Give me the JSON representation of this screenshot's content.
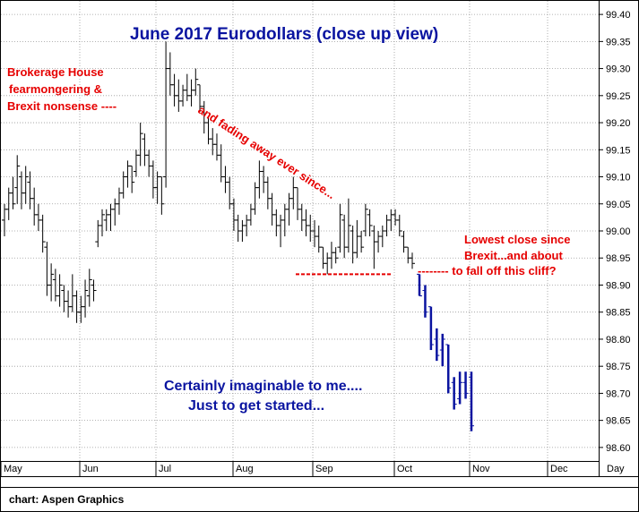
{
  "chart_data": {
    "type": "ohlc",
    "title": "June 2017 Eurodollars (close up view)",
    "x_axis_label": "Day",
    "x_months": [
      "May",
      "Jun",
      "Jul",
      "Aug",
      "Sep",
      "Oct",
      "Nov",
      "Dec"
    ],
    "y_ticks": [
      "99.40",
      "99.35",
      "99.30",
      "99.25",
      "99.20",
      "99.15",
      "99.10",
      "99.05",
      "99.00",
      "98.95",
      "98.90",
      "98.85",
      "98.80",
      "98.75",
      "98.70",
      "98.65",
      "98.60"
    ],
    "ylim": [
      98.575,
      99.425
    ],
    "grid": true,
    "series_color": "#000000",
    "projection_color": "#0a14a0",
    "annotation_color": "#e60000",
    "bars": [
      {
        "h": 99.05,
        "l": 98.99,
        "o": 99.02,
        "c": 99.04
      },
      {
        "h": 99.08,
        "l": 99.02,
        "o": 99.04,
        "c": 99.07
      },
      {
        "h": 99.1,
        "l": 99.04,
        "o": 99.07,
        "c": 99.05
      },
      {
        "h": 99.14,
        "l": 99.05,
        "o": 99.08,
        "c": 99.12
      },
      {
        "h": 99.11,
        "l": 99.04,
        "o": 99.1,
        "c": 99.07
      },
      {
        "h": 99.12,
        "l": 99.05,
        "o": 99.07,
        "c": 99.1
      },
      {
        "h": 99.11,
        "l": 99.04,
        "o": 99.09,
        "c": 99.06
      },
      {
        "h": 99.08,
        "l": 99.01,
        "o": 99.06,
        "c": 99.03
      },
      {
        "h": 99.05,
        "l": 99.0,
        "o": 99.03,
        "c": 99.02
      },
      {
        "h": 99.03,
        "l": 98.96,
        "o": 99.02,
        "c": 98.98
      },
      {
        "h": 98.98,
        "l": 98.88,
        "o": 98.97,
        "c": 98.9
      },
      {
        "h": 98.94,
        "l": 98.87,
        "o": 98.9,
        "c": 98.92
      },
      {
        "h": 98.93,
        "l": 98.87,
        "o": 98.91,
        "c": 98.88
      },
      {
        "h": 98.92,
        "l": 98.86,
        "o": 98.88,
        "c": 98.9
      },
      {
        "h": 98.9,
        "l": 98.85,
        "o": 98.89,
        "c": 98.87
      },
      {
        "h": 98.89,
        "l": 98.84,
        "o": 98.87,
        "c": 98.86
      },
      {
        "h": 98.92,
        "l": 98.85,
        "o": 98.86,
        "c": 98.88
      },
      {
        "h": 98.89,
        "l": 98.83,
        "o": 98.88,
        "c": 98.85
      },
      {
        "h": 98.88,
        "l": 98.83,
        "o": 98.85,
        "c": 98.86
      },
      {
        "h": 98.91,
        "l": 98.84,
        "o": 98.86,
        "c": 98.89
      },
      {
        "h": 98.93,
        "l": 98.86,
        "o": 98.88,
        "c": 98.91
      },
      {
        "h": 98.91,
        "l": 98.87,
        "o": 98.9,
        "c": 98.89
      },
      {
        "h": 99.02,
        "l": 98.97,
        "o": 98.98,
        "c": 99.01
      },
      {
        "h": 99.04,
        "l": 98.99,
        "o": 99.01,
        "c": 99.03
      },
      {
        "h": 99.04,
        "l": 99.0,
        "o": 99.02,
        "c": 99.03
      },
      {
        "h": 99.05,
        "l": 99.0,
        "o": 99.03,
        "c": 99.04
      },
      {
        "h": 99.06,
        "l": 99.01,
        "o": 99.04,
        "c": 99.05
      },
      {
        "h": 99.08,
        "l": 99.03,
        "o": 99.05,
        "c": 99.07
      },
      {
        "h": 99.11,
        "l": 99.06,
        "o": 99.07,
        "c": 99.1
      },
      {
        "h": 99.13,
        "l": 99.08,
        "o": 99.1,
        "c": 99.12
      },
      {
        "h": 99.12,
        "l": 99.07,
        "o": 99.12,
        "c": 99.09
      },
      {
        "h": 99.15,
        "l": 99.1,
        "o": 99.11,
        "c": 99.14
      },
      {
        "h": 99.2,
        "l": 99.12,
        "o": 99.14,
        "c": 99.18
      },
      {
        "h": 99.18,
        "l": 99.12,
        "o": 99.17,
        "c": 99.14
      },
      {
        "h": 99.15,
        "l": 99.1,
        "o": 99.14,
        "c": 99.12
      },
      {
        "h": 99.13,
        "l": 99.06,
        "o": 99.12,
        "c": 99.08
      },
      {
        "h": 99.11,
        "l": 99.05,
        "o": 99.08,
        "c": 99.1
      },
      {
        "h": 99.1,
        "l": 99.03,
        "o": 99.1,
        "c": 99.05
      },
      {
        "h": 99.35,
        "l": 99.08,
        "o": 99.1,
        "c": 99.3
      },
      {
        "h": 99.33,
        "l": 99.25,
        "o": 99.3,
        "c": 99.27
      },
      {
        "h": 99.29,
        "l": 99.23,
        "o": 99.27,
        "c": 99.25
      },
      {
        "h": 99.28,
        "l": 99.22,
        "o": 99.25,
        "c": 99.24
      },
      {
        "h": 99.27,
        "l": 99.23,
        "o": 99.24,
        "c": 99.26
      },
      {
        "h": 99.29,
        "l": 99.24,
        "o": 99.26,
        "c": 99.25
      },
      {
        "h": 99.28,
        "l": 99.23,
        "o": 99.25,
        "c": 99.26
      },
      {
        "h": 99.3,
        "l": 99.25,
        "o": 99.26,
        "c": 99.28
      },
      {
        "h": 99.27,
        "l": 99.22,
        "o": 99.27,
        "c": 99.23
      },
      {
        "h": 99.24,
        "l": 99.18,
        "o": 99.23,
        "c": 99.2
      },
      {
        "h": 99.21,
        "l": 99.16,
        "o": 99.2,
        "c": 99.17
      },
      {
        "h": 99.19,
        "l": 99.14,
        "o": 99.17,
        "c": 99.16
      },
      {
        "h": 99.18,
        "l": 99.13,
        "o": 99.16,
        "c": 99.14
      },
      {
        "h": 99.16,
        "l": 99.09,
        "o": 99.14,
        "c": 99.1
      },
      {
        "h": 99.12,
        "l": 99.07,
        "o": 99.1,
        "c": 99.09
      },
      {
        "h": 99.1,
        "l": 99.04,
        "o": 99.09,
        "c": 99.05
      },
      {
        "h": 99.06,
        "l": 99.0,
        "o": 99.05,
        "c": 99.02
      },
      {
        "h": 99.03,
        "l": 98.98,
        "o": 99.02,
        "c": 99.0
      },
      {
        "h": 99.02,
        "l": 98.98,
        "o": 99.0,
        "c": 99.01
      },
      {
        "h": 99.03,
        "l": 98.99,
        "o": 99.01,
        "c": 99.02
      },
      {
        "h": 99.05,
        "l": 99.01,
        "o": 99.02,
        "c": 99.04
      },
      {
        "h": 99.09,
        "l": 99.03,
        "o": 99.04,
        "c": 99.08
      },
      {
        "h": 99.13,
        "l": 99.06,
        "o": 99.08,
        "c": 99.11
      },
      {
        "h": 99.12,
        "l": 99.07,
        "o": 99.11,
        "c": 99.09
      },
      {
        "h": 99.1,
        "l": 99.04,
        "o": 99.09,
        "c": 99.06
      },
      {
        "h": 99.07,
        "l": 99.01,
        "o": 99.06,
        "c": 99.03
      },
      {
        "h": 99.04,
        "l": 98.99,
        "o": 99.03,
        "c": 99.01
      },
      {
        "h": 99.03,
        "l": 98.97,
        "o": 99.01,
        "c": 99.02
      },
      {
        "h": 99.05,
        "l": 98.99,
        "o": 99.02,
        "c": 99.04
      },
      {
        "h": 99.07,
        "l": 99.01,
        "o": 99.04,
        "c": 99.06
      },
      {
        "h": 99.1,
        "l": 99.04,
        "o": 99.06,
        "c": 99.08
      },
      {
        "h": 99.08,
        "l": 99.02,
        "o": 99.08,
        "c": 99.04
      },
      {
        "h": 99.05,
        "l": 99.0,
        "o": 99.04,
        "c": 99.02
      },
      {
        "h": 99.04,
        "l": 98.99,
        "o": 99.02,
        "c": 99.01
      },
      {
        "h": 99.03,
        "l": 98.98,
        "o": 99.01,
        "c": 99.0
      },
      {
        "h": 99.02,
        "l": 98.97,
        "o": 99.0,
        "c": 98.99
      },
      {
        "h": 99.01,
        "l": 98.96,
        "o": 98.99,
        "c": 98.97
      },
      {
        "h": 98.97,
        "l": 98.93,
        "o": 98.97,
        "c": 98.94
      },
      {
        "h": 98.96,
        "l": 98.92,
        "o": 98.94,
        "c": 98.95
      },
      {
        "h": 98.98,
        "l": 98.93,
        "o": 98.95,
        "c": 98.96
      },
      {
        "h": 98.97,
        "l": 98.94,
        "o": 98.96,
        "c": 98.95
      },
      {
        "h": 99.05,
        "l": 98.96,
        "o": 98.97,
        "c": 99.03
      },
      {
        "h": 99.03,
        "l": 98.95,
        "o": 99.02,
        "c": 98.97
      },
      {
        "h": 99.06,
        "l": 98.96,
        "o": 98.97,
        "c": 99.01
      },
      {
        "h": 99.01,
        "l": 98.94,
        "o": 99.0,
        "c": 98.96
      },
      {
        "h": 99.02,
        "l": 98.95,
        "o": 98.96,
        "c": 98.99
      },
      {
        "h": 99.0,
        "l": 98.96,
        "o": 98.99,
        "c": 98.97
      },
      {
        "h": 99.05,
        "l": 98.99,
        "o": 99.0,
        "c": 99.04
      },
      {
        "h": 99.04,
        "l": 98.99,
        "o": 99.03,
        "c": 99.01
      },
      {
        "h": 99.01,
        "l": 98.93,
        "o": 99.0,
        "c": 98.98
      },
      {
        "h": 99.0,
        "l": 98.96,
        "o": 98.98,
        "c": 98.99
      },
      {
        "h": 99.01,
        "l": 98.97,
        "o": 98.99,
        "c": 99.0
      },
      {
        "h": 99.03,
        "l": 98.99,
        "o": 99.0,
        "c": 99.02
      },
      {
        "h": 99.04,
        "l": 99.0,
        "o": 99.02,
        "c": 99.03
      },
      {
        "h": 99.04,
        "l": 99.01,
        "o": 99.03,
        "c": 99.02
      },
      {
        "h": 99.03,
        "l": 98.99,
        "o": 99.02,
        "c": 99.0
      },
      {
        "h": 99.0,
        "l": 98.96,
        "o": 98.99,
        "c": 98.97
      },
      {
        "h": 98.97,
        "l": 98.94,
        "o": 98.97,
        "c": 98.95
      },
      {
        "h": 98.96,
        "l": 98.93,
        "o": 98.95,
        "c": 98.94
      }
    ],
    "projection_bars": [
      {
        "h": 98.92,
        "l": 98.88,
        "o": 98.92,
        "c": 98.88
      },
      {
        "h": 98.9,
        "l": 98.84,
        "o": 98.89,
        "c": 98.85
      },
      {
        "h": 98.86,
        "l": 98.78,
        "o": 98.86,
        "c": 98.79
      },
      {
        "h": 98.82,
        "l": 98.76,
        "o": 98.8,
        "c": 98.77
      },
      {
        "h": 98.81,
        "l": 98.75,
        "o": 98.78,
        "c": 98.8
      },
      {
        "h": 98.79,
        "l": 98.7,
        "o": 98.79,
        "c": 98.71
      },
      {
        "h": 98.73,
        "l": 98.67,
        "o": 98.72,
        "c": 98.68
      },
      {
        "h": 98.74,
        "l": 98.68,
        "o": 98.69,
        "c": 98.72
      },
      {
        "h": 98.74,
        "l": 98.69,
        "o": 98.72,
        "c": 98.7
      },
      {
        "h": 98.74,
        "l": 98.63,
        "o": 98.73,
        "c": 98.64
      }
    ],
    "support_level": 98.92,
    "annotations": {
      "brokerage": [
        "Brokerage House",
        "fearmongering &",
        "Brexit nonsense ----"
      ],
      "fading": "and fading away ever since...",
      "lowest": [
        "Lowest close since",
        "Brexit...and about",
        "--------  to fall off this cliff?"
      ],
      "projection": [
        "Certainly imaginable to me....",
        "Just to get started..."
      ]
    },
    "footer": "chart: Aspen Graphics"
  }
}
